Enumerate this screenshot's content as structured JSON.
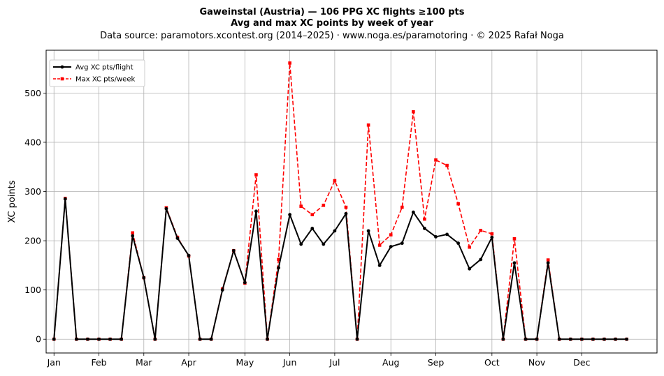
{
  "chart_data": {
    "type": "line",
    "title": "Gaweinstal (Austria)  —  106 PPG XC flights ≥100 pts",
    "subtitle": "Avg and max XC points by week of year",
    "source_line": "Data source: paramotors.xcontest.org (2014–2025)  ·  www.noga.es/paramotoring  ·  © 2025 Rafał Noga",
    "xlabel": "",
    "ylabel": "XC points",
    "xlim": [
      0.3,
      54.7
    ],
    "ylim": [
      -28,
      587
    ],
    "x_ticks": [
      {
        "x": 1,
        "label": "Jan"
      },
      {
        "x": 5,
        "label": "Feb"
      },
      {
        "x": 9,
        "label": "Mar"
      },
      {
        "x": 13,
        "label": "Apr"
      },
      {
        "x": 18,
        "label": "May"
      },
      {
        "x": 22,
        "label": "Jun"
      },
      {
        "x": 26,
        "label": "Jul"
      },
      {
        "x": 31,
        "label": "Aug"
      },
      {
        "x": 35,
        "label": "Sep"
      },
      {
        "x": 40,
        "label": "Oct"
      },
      {
        "x": 44,
        "label": "Nov"
      },
      {
        "x": 48,
        "label": "Dec"
      }
    ],
    "y_ticks": [
      0,
      100,
      200,
      300,
      400,
      500
    ],
    "grid": true,
    "legend_position": "top-left",
    "x": [
      1,
      2,
      3,
      4,
      5,
      6,
      7,
      8,
      9,
      10,
      11,
      12,
      13,
      14,
      15,
      16,
      17,
      18,
      19,
      20,
      21,
      22,
      23,
      24,
      25,
      26,
      27,
      28,
      29,
      30,
      31,
      32,
      33,
      34,
      35,
      36,
      37,
      38,
      39,
      40,
      41,
      42,
      43,
      44,
      45,
      46,
      47,
      48,
      49,
      50,
      51,
      52
    ],
    "series": [
      {
        "name": "Avg XC pts/flight",
        "color": "#000000",
        "style": "solid",
        "marker": "circle",
        "values": [
          0,
          285,
          0,
          0,
          0,
          0,
          0,
          210,
          125,
          0,
          265,
          205,
          170,
          0,
          0,
          100,
          180,
          115,
          260,
          0,
          145,
          253,
          193,
          225,
          193,
          220,
          255,
          0,
          220,
          150,
          188,
          195,
          258,
          225,
          208,
          213,
          195,
          143,
          162,
          207,
          0,
          155,
          0,
          0,
          155,
          0,
          0,
          0,
          0,
          0,
          0,
          0
        ]
      },
      {
        "name": "Max XC pts/week",
        "color": "#ff0000",
        "style": "dashed",
        "marker": "square",
        "values": [
          0,
          286,
          0,
          0,
          0,
          0,
          0,
          216,
          125,
          0,
          267,
          207,
          169,
          0,
          0,
          102,
          180,
          114,
          334,
          0,
          162,
          561,
          270,
          253,
          272,
          322,
          268,
          0,
          435,
          191,
          212,
          268,
          462,
          244,
          364,
          353,
          275,
          187,
          221,
          214,
          0,
          204,
          0,
          0,
          161,
          0,
          0,
          0,
          0,
          0,
          0,
          0
        ]
      }
    ]
  }
}
